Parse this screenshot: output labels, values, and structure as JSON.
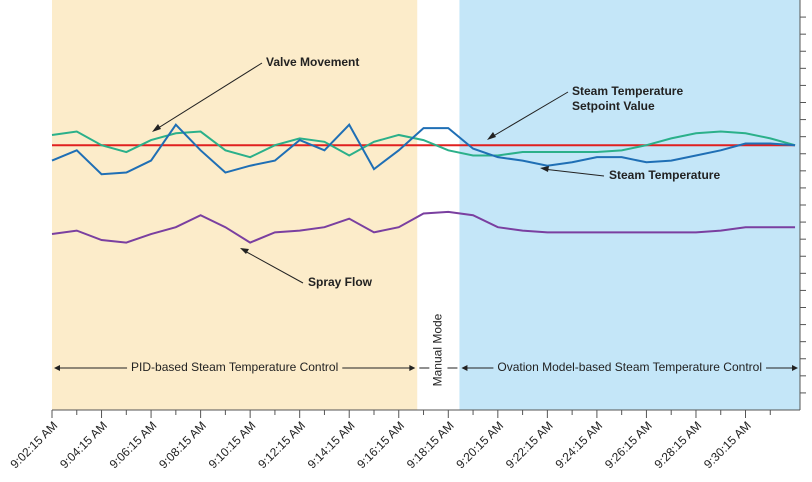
{
  "chart_data": {
    "type": "line",
    "x": [
      0,
      1,
      2,
      3,
      4,
      5,
      6,
      7,
      8,
      9,
      10,
      11,
      12,
      13,
      14,
      15,
      16,
      17,
      18,
      19,
      20,
      21,
      22,
      23,
      24,
      25,
      26,
      27,
      28,
      29,
      30
    ],
    "xlim": [
      0,
      30.2
    ],
    "xticks": [
      {
        "value": 0,
        "label": "9:02:15 AM"
      },
      {
        "value": 2,
        "label": "9:04:15 AM"
      },
      {
        "value": 4,
        "label": "9:06:15 AM"
      },
      {
        "value": 6,
        "label": "9:08:15 AM"
      },
      {
        "value": 8,
        "label": "9:10:15 AM"
      },
      {
        "value": 10,
        "label": "9:12:15 AM"
      },
      {
        "value": 12,
        "label": "9:14:15 AM"
      },
      {
        "value": 14,
        "label": "9:16:15 AM"
      },
      {
        "value": 16,
        "label": "9:18:15 AM"
      },
      {
        "value": 18,
        "label": "9:20:15 AM"
      },
      {
        "value": 20,
        "label": "9:22:15 AM"
      },
      {
        "value": 22,
        "label": "9:24:15 AM"
      },
      {
        "value": 24,
        "label": "9:26:15 AM"
      },
      {
        "value": 26,
        "label": "9:28:15 AM"
      },
      {
        "value": 28,
        "label": "9:30:15 AM"
      }
    ],
    "xminorticks": [
      1,
      3,
      5,
      7,
      9,
      11,
      13,
      15,
      17,
      19,
      21,
      23,
      25,
      27,
      29
    ],
    "ylim": [
      0,
      24
    ],
    "yticks": [
      1,
      2,
      3,
      4,
      5,
      6,
      7,
      8,
      9,
      10,
      11,
      12,
      13,
      14,
      15,
      16,
      17,
      18,
      19,
      20,
      21,
      22,
      23
    ],
    "ytick_labels": false,
    "regions": [
      {
        "label": "PID-based Steam Temperature Control",
        "start": 0,
        "end": 14.75,
        "color": "#fcecca"
      },
      {
        "label": "Manual Mode",
        "start": 14.75,
        "end": 16.45,
        "color": "#ffffff"
      },
      {
        "label": "Ovation Model-based Steam Temperature Control",
        "start": 16.45,
        "end": 30.2,
        "color": "#c4e6f8"
      }
    ],
    "series": [
      {
        "name": "Steam Temperature Setpoint Value",
        "color": "#e02020",
        "values": [
          15.5,
          15.5,
          15.5,
          15.5,
          15.5,
          15.5,
          15.5,
          15.5,
          15.5,
          15.5,
          15.5,
          15.5,
          15.5,
          15.5,
          15.5,
          15.5,
          15.5,
          15.5,
          15.5,
          15.5,
          15.5,
          15.5,
          15.5,
          15.5,
          15.5,
          15.5,
          15.5,
          15.5,
          15.5,
          15.5,
          15.5
        ]
      },
      {
        "name": "Valve Movement",
        "color": "#2bb08a",
        "values": [
          16.1,
          16.3,
          15.5,
          15.1,
          15.8,
          16.2,
          16.3,
          15.2,
          14.8,
          15.5,
          15.9,
          15.7,
          14.9,
          15.7,
          16.1,
          15.8,
          15.2,
          14.9,
          14.9,
          15.1,
          15.1,
          15.1,
          15.1,
          15.2,
          15.5,
          15.9,
          16.2,
          16.3,
          16.2,
          15.9,
          15.5
        ]
      },
      {
        "name": "Steam Temperature",
        "color": "#1f6fb5",
        "values": [
          14.6,
          15.2,
          13.8,
          13.9,
          14.6,
          16.7,
          15.2,
          13.9,
          14.3,
          14.6,
          15.8,
          15.2,
          16.7,
          14.1,
          15.2,
          16.5,
          16.5,
          15.3,
          14.8,
          14.6,
          14.3,
          14.5,
          14.8,
          14.8,
          14.5,
          14.6,
          14.9,
          15.2,
          15.6,
          15.6,
          15.5
        ]
      },
      {
        "name": "Spray Flow",
        "color": "#7a3fa0",
        "values": [
          10.3,
          10.5,
          9.95,
          9.8,
          10.3,
          10.7,
          11.4,
          10.7,
          9.8,
          10.4,
          10.5,
          10.7,
          11.2,
          10.4,
          10.7,
          11.5,
          11.6,
          11.4,
          10.7,
          10.5,
          10.4,
          10.4,
          10.4,
          10.4,
          10.4,
          10.4,
          10.4,
          10.5,
          10.7,
          10.7,
          10.7
        ]
      }
    ],
    "annotations": {
      "valve": "Valve Movement",
      "setpoint_line1": "Steam Temperature",
      "setpoint_line2": "Setpoint Value",
      "steam": "Steam Temperature",
      "spray": "Spray Flow"
    }
  }
}
